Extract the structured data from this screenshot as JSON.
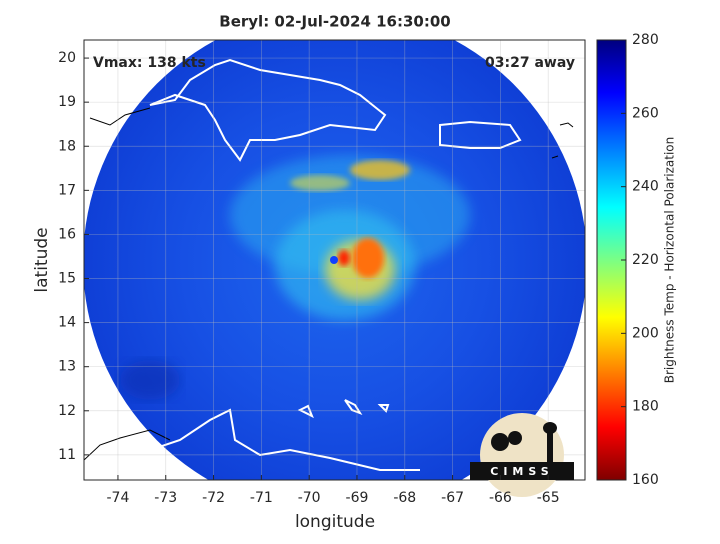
{
  "chart_data": {
    "type": "image-map",
    "title": "Beryl: 02-Jul-2024 16:30:00",
    "annotations": [
      "Vmax: 138 kts",
      "03:27 away"
    ],
    "x_label": "longitude",
    "y_label": "latitude",
    "xlim": [
      -74.71,
      -64.23
    ],
    "ylim": [
      10.43,
      20.41
    ],
    "xticks": [
      -74,
      -73,
      -72,
      -71,
      -70,
      -69,
      -68,
      -67,
      -66,
      -65
    ],
    "yticks": [
      11,
      12,
      13,
      14,
      15,
      16,
      17,
      18,
      19,
      20
    ],
    "grid": true,
    "colorbar": {
      "label": "Brightness Temp - Horizontal Polarization",
      "clim": [
        160,
        280
      ],
      "ticks": [
        160,
        180,
        200,
        220,
        240,
        260,
        280
      ]
    },
    "logo_text": "CIMSS"
  }
}
